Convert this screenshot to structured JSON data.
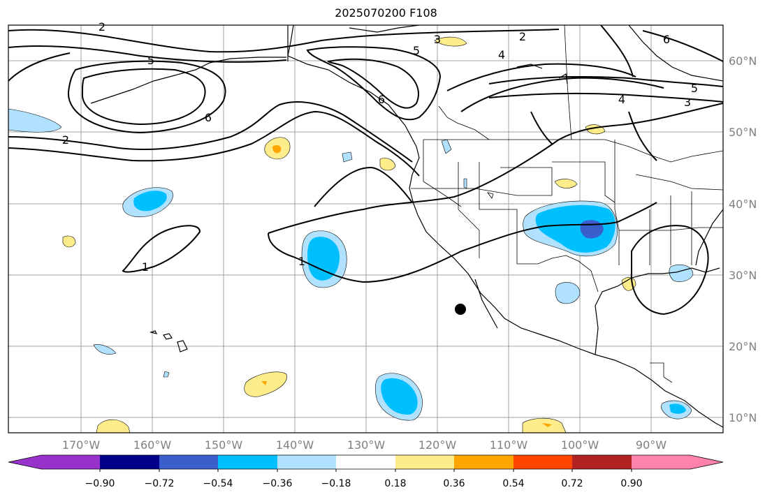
{
  "title": "2025070200 F108",
  "map": {
    "lon_labels": [
      "170°W",
      "160°W",
      "150°W",
      "140°W",
      "130°W",
      "120°W",
      "110°W",
      "100°W",
      "90°W"
    ],
    "lat_labels": [
      "60°N",
      "50°N",
      "40°N",
      "30°N",
      "20°N",
      "10°N"
    ],
    "contour_labels": [
      "1",
      "1",
      "2",
      "2",
      "2",
      "3",
      "3",
      "4",
      "4",
      "5",
      "5",
      "5",
      "6",
      "6",
      "6"
    ]
  },
  "colorbar": {
    "tick_labels": [
      "−0.90",
      "−0.72",
      "−0.54",
      "−0.36",
      "−0.18",
      "0.18",
      "0.36",
      "0.54",
      "0.72",
      "0.90"
    ],
    "colors": [
      "#9932cc",
      "#00008b",
      "#3a5fcd",
      "#00bfff",
      "#b0e2ff",
      "#ffffff",
      "#ffec8b",
      "#ffa500",
      "#ff4500",
      "#b22222",
      "#ff82ab"
    ]
  }
}
